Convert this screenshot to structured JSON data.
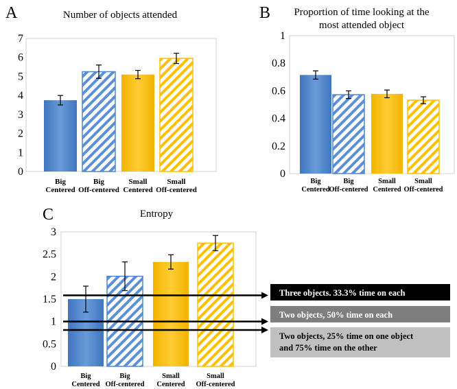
{
  "chart_data": [
    {
      "panel_label": "A",
      "type": "bar",
      "title": "Number of objects attended",
      "categories": [
        [
          "Big",
          "Centered"
        ],
        [
          "Big",
          "Off-centered"
        ],
        [
          "Small",
          "Centered"
        ],
        [
          "Small",
          "Off-centered"
        ]
      ],
      "values": [
        3.75,
        5.25,
        5.1,
        5.95
      ],
      "errors": [
        0.25,
        0.35,
        0.22,
        0.27
      ],
      "ylim": [
        0,
        7
      ],
      "yticks": [
        "0",
        "1",
        "2",
        "3",
        "4",
        "5",
        "6",
        "7"
      ],
      "grid": false,
      "xlabel": "",
      "ylabel": ""
    },
    {
      "panel_label": "B",
      "type": "bar",
      "title": [
        "Proportion of time looking at the",
        "most attended object"
      ],
      "categories": [
        [
          "Big",
          "Centered"
        ],
        [
          "Big",
          "Off-centered"
        ],
        [
          "Small",
          "Centered"
        ],
        [
          "Small",
          "Off-centered"
        ]
      ],
      "values": [
        0.715,
        0.572,
        0.578,
        0.532
      ],
      "errors": [
        0.03,
        0.028,
        0.028,
        0.025
      ],
      "ylim": [
        0,
        1
      ],
      "yticks": [
        "0",
        "0.2",
        "0.4",
        "0.6",
        "0.8",
        "1"
      ],
      "grid": false,
      "xlabel": "",
      "ylabel": ""
    },
    {
      "panel_label": "C",
      "type": "bar",
      "title": "Entropy",
      "categories": [
        [
          "Big",
          "Centered"
        ],
        [
          "Big",
          "Off-centered"
        ],
        [
          "Small",
          "Centered"
        ],
        [
          "Small",
          "Off-centered"
        ]
      ],
      "values": [
        1.5,
        2.01,
        2.33,
        2.75
      ],
      "errors": [
        0.29,
        0.32,
        0.16,
        0.17
      ],
      "ylim": [
        0,
        3
      ],
      "yticks": [
        "0",
        "0.5",
        "1",
        "1.5",
        "2",
        "2.5",
        "3"
      ],
      "grid": false,
      "xlabel": "",
      "ylabel": "",
      "annotations": [
        {
          "y": 1.585,
          "text": "Three objects. 33.3% time on each",
          "box_color": "#000000",
          "text_color": "#ffffff"
        },
        {
          "y": 1.0,
          "text": "Two objects, 50% time on each",
          "box_color": "#7f7f7f",
          "text_color": "#ffffff"
        },
        {
          "y": 0.811,
          "text": [
            "Two objects, 25% time on one object",
            "and 75% time on the other"
          ],
          "box_color": "#c0c0c0",
          "text_color": "#000000"
        }
      ]
    }
  ],
  "colors": {
    "big": "#4f86cc",
    "big_dark": "#3a6eb5",
    "small": "#ffc000",
    "small_dark": "#e0a800"
  },
  "bar_styles": [
    "solid",
    "hatched",
    "solid",
    "hatched"
  ],
  "bar_colors": [
    "big",
    "big",
    "small",
    "small"
  ]
}
